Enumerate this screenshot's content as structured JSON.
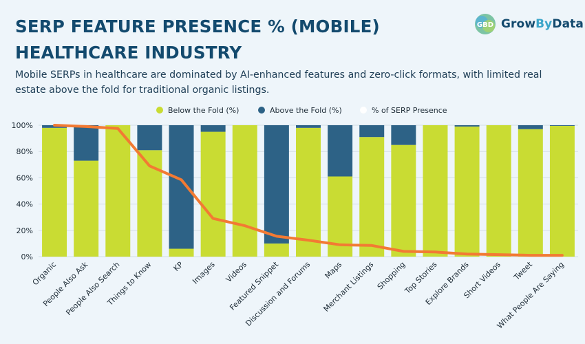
{
  "header": {
    "title_line1": "SERP FEATURE PRESENCE % (MOBILE)",
    "title_line2": "HEALTHCARE INDUSTRY",
    "subtitle": "Mobile SERPs in healthcare are dominated by AI-enhanced features and zero-click formats, with limited real estate above the fold for traditional organic listings."
  },
  "logo": {
    "text_left": "Grow",
    "text_mid": "By",
    "text_right": "Data",
    "mark_letters": "GBD"
  },
  "colors": {
    "below": "#c9dc33",
    "above": "#2d6286",
    "line": "#f27a33",
    "title": "#134a6e",
    "background": "#eef5fa"
  },
  "chart_data": {
    "type": "bar",
    "stacked": true,
    "ylim": [
      0,
      100
    ],
    "yticks": [
      "0%",
      "20%",
      "40%",
      "60%",
      "80%",
      "100%"
    ],
    "legend_position": "top-center",
    "categories": [
      "Organic",
      "People Also Ask",
      "People Also Search",
      "Things to Know",
      "KP",
      "Images",
      "Videos",
      "Featured Snippet",
      "Discussion and Forums",
      "Maps",
      "Merchant Listings",
      "Shopping",
      "Top Stories",
      "Explore Brands",
      "Short Videos",
      "Tweet",
      "What People Are Saying"
    ],
    "series": [
      {
        "name": "Below the Fold (%)",
        "kind": "bar",
        "color": "#c9dc33",
        "values": [
          98,
          73,
          100,
          81,
          6,
          95,
          100,
          10,
          98,
          61,
          91,
          85,
          100,
          99,
          100,
          97,
          99.5
        ]
      },
      {
        "name": "Above the Fold (%)",
        "kind": "bar",
        "color": "#2d6286",
        "values": [
          2,
          27,
          0,
          19,
          94,
          5,
          0,
          90,
          2,
          39,
          9,
          15,
          0,
          1,
          0,
          3,
          0.5
        ]
      },
      {
        "name": "% of SERP Presence",
        "kind": "line",
        "color": "#f27a33",
        "values": [
          100,
          99,
          97.5,
          69,
          58.5,
          29,
          23.5,
          15.5,
          12.5,
          9,
          8.5,
          4,
          3.5,
          2,
          1.5,
          1,
          1
        ]
      }
    ]
  }
}
